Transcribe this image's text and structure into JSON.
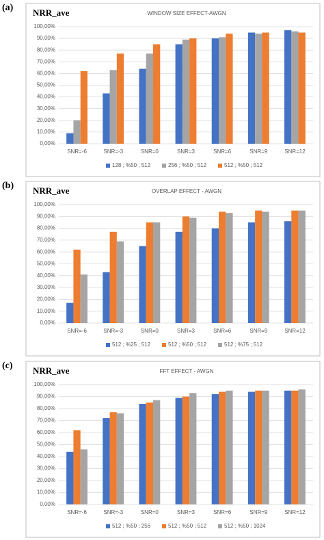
{
  "chart_data": [
    {
      "type": "bar",
      "panel_label": "(a)",
      "ylabel": "NRR_ave",
      "title": "WINDOW SIZE EFFECT-AWGN",
      "categories": [
        "SNR=-6",
        "SNR=-3",
        "SNR=0",
        "SNR=3",
        "SNR=6",
        "SNR=9",
        "SNR=12"
      ],
      "series": [
        {
          "name": "128 ; %50 ; 512",
          "color": "#4472c4",
          "values": [
            9,
            43,
            64,
            85,
            90,
            95,
            97
          ]
        },
        {
          "name": "256 ; %50 ; 512",
          "color": "#a5a5a5",
          "values": [
            20,
            63,
            77,
            89,
            91,
            94,
            96
          ]
        },
        {
          "name": "512 ; %50 ; 512",
          "color": "#ed7d31",
          "values": [
            62,
            77,
            85,
            90,
            94,
            95,
            95
          ]
        }
      ],
      "ylim": [
        0,
        100
      ],
      "yticks": [
        {
          "value": 0,
          "label": "0,00%"
        },
        {
          "value": 10,
          "label": "10,00%"
        },
        {
          "value": 20,
          "label": "20,00%"
        },
        {
          "value": 30,
          "label": "30,00%"
        },
        {
          "value": 40,
          "label": "40,00%"
        },
        {
          "value": 50,
          "label": "50,00%"
        },
        {
          "value": 60,
          "label": "60,00%"
        },
        {
          "value": 70,
          "label": "70,00%"
        },
        {
          "value": 80,
          "label": "80,00%"
        },
        {
          "value": 90,
          "label": "90,00%"
        },
        {
          "value": 100,
          "label": "100,00%"
        }
      ],
      "grid": true,
      "legend": "bottom"
    },
    {
      "type": "bar",
      "panel_label": "(b)",
      "ylabel": "NRR_ave",
      "title": "OVERLAP EFFECT - AWGN",
      "categories": [
        "SNR=-6",
        "SNR=-3",
        "SNR=0",
        "SNR=3",
        "SNR=6",
        "SNR=9",
        "SNR=12"
      ],
      "series": [
        {
          "name": "512 ; %25 ; 512",
          "color": "#4472c4",
          "values": [
            17,
            43,
            65,
            77,
            80,
            85,
            86
          ]
        },
        {
          "name": "512 ; %50 ; 512",
          "color": "#ed7d31",
          "values": [
            62,
            77,
            85,
            90,
            94,
            95,
            95
          ]
        },
        {
          "name": "512 ; %75 ; 512",
          "color": "#a5a5a5",
          "values": [
            41,
            69,
            85,
            89,
            93,
            94,
            95
          ]
        }
      ],
      "ylim": [
        0,
        100
      ],
      "yticks": [
        {
          "value": 0,
          "label": "0,00%"
        },
        {
          "value": 10,
          "label": "10,00%"
        },
        {
          "value": 20,
          "label": "20,00%"
        },
        {
          "value": 30,
          "label": "30,00%"
        },
        {
          "value": 40,
          "label": "40,00%"
        },
        {
          "value": 50,
          "label": "50,00%"
        },
        {
          "value": 60,
          "label": "60,00%"
        },
        {
          "value": 70,
          "label": "70,00%"
        },
        {
          "value": 80,
          "label": "80,00%"
        },
        {
          "value": 90,
          "label": "90,00%"
        },
        {
          "value": 100,
          "label": "100,00%"
        }
      ],
      "grid": true,
      "legend": "bottom"
    },
    {
      "type": "bar",
      "panel_label": "(c)",
      "ylabel": "NRR_ave",
      "title": "FFT EFFECT - AWGN",
      "categories": [
        "SNR=-6",
        "SNR=-3",
        "SNR=0",
        "SNR=3",
        "SNR=6",
        "SNR=9",
        "SNR=12"
      ],
      "series": [
        {
          "name": "512 ; %50 ; 256",
          "color": "#4472c4",
          "values": [
            44,
            72,
            84,
            89,
            92,
            94,
            95
          ]
        },
        {
          "name": "512 ; %50 ; 512",
          "color": "#ed7d31",
          "values": [
            62,
            77,
            85,
            90,
            94,
            95,
            95
          ]
        },
        {
          "name": "512 ; %50 ; 1024",
          "color": "#a5a5a5",
          "values": [
            46,
            76,
            87,
            93,
            95,
            95,
            96
          ]
        }
      ],
      "ylim": [
        0,
        100
      ],
      "yticks": [
        {
          "value": 0,
          "label": "0,00%"
        },
        {
          "value": 10,
          "label": "10,00%"
        },
        {
          "value": 20,
          "label": "20,00%"
        },
        {
          "value": 30,
          "label": "30,00%"
        },
        {
          "value": 40,
          "label": "40,00%"
        },
        {
          "value": 50,
          "label": "50,00%"
        },
        {
          "value": 60,
          "label": "60,00%"
        },
        {
          "value": 70,
          "label": "70,00%"
        },
        {
          "value": 80,
          "label": "80,00%"
        },
        {
          "value": 90,
          "label": "90,00%"
        },
        {
          "value": 100,
          "label": "100,00%"
        }
      ],
      "grid": true,
      "legend": "bottom"
    }
  ]
}
